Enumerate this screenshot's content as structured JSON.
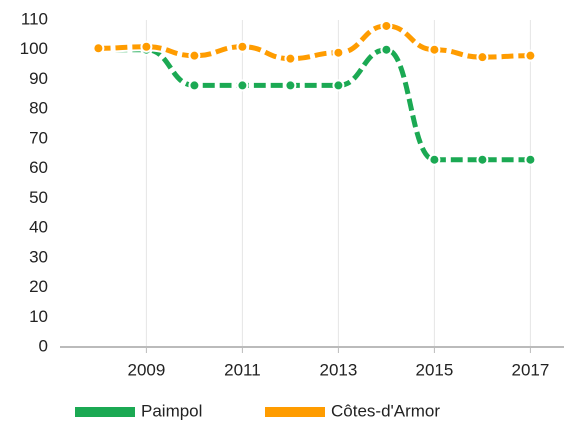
{
  "chart_data": {
    "type": "line",
    "x": [
      2008,
      2009,
      2010,
      2011,
      2012,
      2013,
      2014,
      2015,
      2016,
      2017
    ],
    "series": [
      {
        "name": "Paimpol",
        "color": "#1ba953",
        "values": [
          100,
          100,
          88,
          88,
          88,
          88,
          100,
          63,
          63,
          63
        ]
      },
      {
        "name": "Côtes-d'Armor",
        "color": "#ff9c00",
        "values": [
          100.5,
          101,
          98,
          101,
          97,
          99,
          108,
          100,
          97.5,
          98
        ]
      }
    ],
    "xlim": [
      2007.2,
      2017.7
    ],
    "xticks": [
      2009,
      2011,
      2013,
      2015,
      2017
    ],
    "ylim": [
      0,
      110
    ],
    "yticks": [
      0,
      10,
      20,
      30,
      40,
      50,
      60,
      70,
      80,
      90,
      100,
      110
    ],
    "grid": true,
    "legend": "bottom"
  }
}
